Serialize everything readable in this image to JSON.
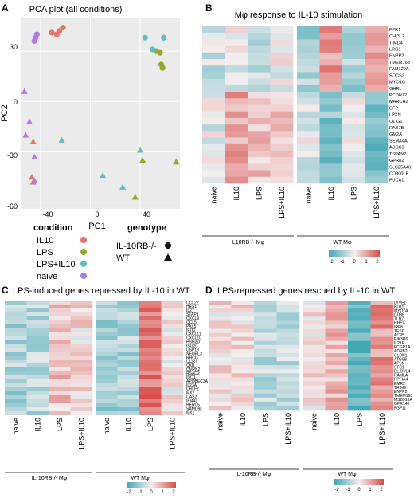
{
  "panels": {
    "A": {
      "letter": "A",
      "title": "PCA plot (all conditions)",
      "xlabel": "PC1",
      "ylabel": "PC2",
      "xticks": [
        "-40",
        "0",
        "40"
      ],
      "yticks": [
        "30",
        "0",
        "-30",
        "-60"
      ],
      "legend": {
        "condition_title": "condition",
        "conditions": [
          {
            "label": "IL10",
            "color": "#e57368"
          },
          {
            "label": "LPS",
            "color": "#8fab2a"
          },
          {
            "label": "LPS+IL10",
            "color": "#5fbcc0"
          },
          {
            "label": "naive",
            "color": "#b27ae8"
          }
        ],
        "genotype_title": "genotype",
        "genotypes": [
          {
            "label": "IL-10RB-/-",
            "shape": "circle"
          },
          {
            "label": "WT",
            "shape": "triangle"
          }
        ]
      }
    },
    "B": {
      "letter": "B",
      "title": "Mφ response to IL-10 stimulation",
      "genes": [
        "FPR1",
        "CHI3L2",
        "TIMD4",
        "LRG1",
        "ENPP2",
        "TMEM163",
        "FAM129A",
        "SOCS3",
        "MYO1G",
        "GHRL",
        "PCDH12",
        "MARCH2",
        "CFP",
        "LPXN",
        "OLIG1",
        "RAB7B",
        "GM2A",
        "SEMA4A",
        "ABCC3",
        "TSPAN7",
        "GPR82",
        "SLC25A40",
        "CD300LB",
        "FUCA1"
      ],
      "columns_ko": [
        "naive",
        "IL10",
        "LPS",
        "LPS+IL10"
      ],
      "columns_wt": [
        "naive",
        "IL10",
        "LPS",
        "LPS+IL10"
      ],
      "group_ko": "L10RB-/- Mφ",
      "group_wt": "WT Mφ",
      "scale_ticks": [
        "-2",
        "-1",
        "0",
        "1",
        "2"
      ]
    },
    "C": {
      "letter": "C",
      "title": "LPS-induced genes repressed by IL-10 in WT",
      "genes": [
        "CCL22",
        "HES1",
        "IL27",
        "STAP1",
        "CXCL9",
        "CCL5",
        "PAX5",
        "IFIT2",
        "CXCL11",
        "CXCL10",
        "HSH2D",
        "ISG20",
        "USP18",
        "NEURL3",
        "RHCG",
        "CCR7",
        "CKB",
        "CMPK2",
        "RSAD2",
        "IDO1",
        "APOBEC3A",
        "IL23A",
        "CRLF2",
        "MX2",
        "OAS2",
        "IFI44L",
        "HERC5",
        "SAMD9L",
        "MX1"
      ],
      "columns_ko": [
        "naive",
        "IL10",
        "LPS",
        "LPS+IL10"
      ],
      "columns_wt": [
        "naive",
        "IL10",
        "LPS",
        "LPS+IL10"
      ],
      "group_ko": "IL-10RB-/- Mφ",
      "group_wt": "WT Mφ",
      "scale_ticks": [
        "-2",
        "-1",
        "0",
        "1",
        "2"
      ]
    },
    "D": {
      "letter": "D",
      "title": "LPS-repressed genes rescued by IL-10 in WT",
      "genes": [
        "LYVE1",
        "PLB1",
        "MYO7A",
        "CD36",
        "TLR7",
        "HHEX",
        "IRF8",
        "TESC",
        "ACP5",
        "PIK3R6",
        "IL21R",
        "FCGR1A",
        "ADRB2",
        "CLDN1",
        "ATG9B",
        "APLN",
        "STC1",
        "EL.OVL4",
        "RAMLA",
        "PPFIA4",
        "EMR2",
        "TRIM9",
        "ENPP2",
        "TMEM163",
        "MS2D18A",
        "GPR146",
        "FGF11"
      ],
      "columns_ko": [
        "naive",
        "IL10",
        "LPS",
        "LPS+IL10"
      ],
      "columns_wt": [
        "naive",
        "IL10",
        "LPS",
        "LPS+IL10"
      ],
      "group_ko": "IL-10RB-/- Mφ",
      "group_wt": "WT Mφ",
      "scale_ticks": [
        "-2",
        "-1",
        "0",
        "1",
        "2"
      ]
    }
  },
  "colors": {
    "low": "#41a8b5",
    "mid": "#f4eeee",
    "high": "#d84c4a",
    "plot_bg": "#ebebeb",
    "grid": "#ffffff"
  },
  "chart_data": [
    {
      "type": "scatter",
      "title": "PCA plot (all conditions)",
      "xlabel": "PC1",
      "ylabel": "PC2",
      "xlim": [
        -56,
        72
      ],
      "ylim": [
        -64,
        50
      ],
      "series": [
        {
          "name": "IL10",
          "shape": "circle",
          "x": [
            -31,
            -27,
            -25,
            -22
          ],
          "y": [
            41,
            40,
            42,
            44
          ]
        },
        {
          "name": "IL10",
          "shape": "triangle",
          "x": [
            -46,
            -47,
            -46
          ],
          "y": [
            -24,
            -45,
            -48
          ]
        },
        {
          "name": "LPS",
          "shape": "circle",
          "x": [
            53,
            56,
            57,
            58
          ],
          "y": [
            30,
            29,
            22,
            20
          ]
        },
        {
          "name": "LPS",
          "shape": "triangle",
          "x": [
            42,
            36,
            69
          ],
          "y": [
            -35,
            -57,
            -36
          ]
        },
        {
          "name": "LPS+IL10",
          "shape": "circle",
          "x": [
            44,
            50,
            59
          ],
          "y": [
            38,
            31,
            38
          ]
        },
        {
          "name": "LPS+IL10",
          "shape": "triangle",
          "x": [
            -23,
            10,
            26,
            40
          ],
          "y": [
            -23,
            -44,
            -51,
            -29
          ]
        },
        {
          "name": "naive",
          "shape": "circle",
          "x": [
            -45,
            -44,
            -43
          ],
          "y": [
            36,
            38,
            40
          ]
        },
        {
          "name": "naive",
          "shape": "triangle",
          "x": [
            -53,
            -52,
            -49,
            -45,
            -45
          ],
          "y": [
            6,
            -20,
            -12,
            -33,
            -47
          ]
        }
      ]
    }
  ]
}
